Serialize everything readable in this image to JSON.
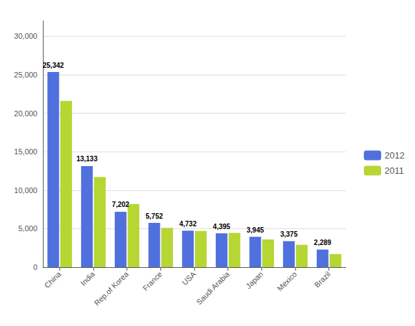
{
  "chart_data": {
    "type": "bar",
    "categories": [
      "China",
      "India",
      "Rep.of Korea",
      "France",
      "USA",
      "Saudi Arabia",
      "Japan",
      "Mexico",
      "Brazil"
    ],
    "series": [
      {
        "name": "2012",
        "values": [
          25342,
          13133,
          7202,
          5752,
          4732,
          4395,
          3945,
          3375,
          2289
        ],
        "value_labels": [
          "25,342",
          "13,133",
          "7,202",
          "5,752",
          "4,732",
          "4,395",
          "3,945",
          "3,375",
          "2,289"
        ],
        "data_labels": true
      },
      {
        "name": "2011",
        "values": [
          21600,
          11700,
          8200,
          5100,
          4700,
          4450,
          3600,
          2900,
          1700
        ],
        "data_labels": false
      }
    ],
    "ylim": [
      0,
      32000
    ],
    "yticks": [
      0,
      {
        "value": 5000,
        "label": "5,000"
      },
      {
        "value": 10000,
        "label": "10,000"
      },
      {
        "value": 15000,
        "label": "15,000"
      },
      {
        "value": 20000,
        "label": "20,000"
      },
      {
        "value": 25000,
        "label": "25,000"
      },
      {
        "value": 30000,
        "label": "30,000"
      }
    ],
    "grid": true,
    "legend": "right"
  }
}
